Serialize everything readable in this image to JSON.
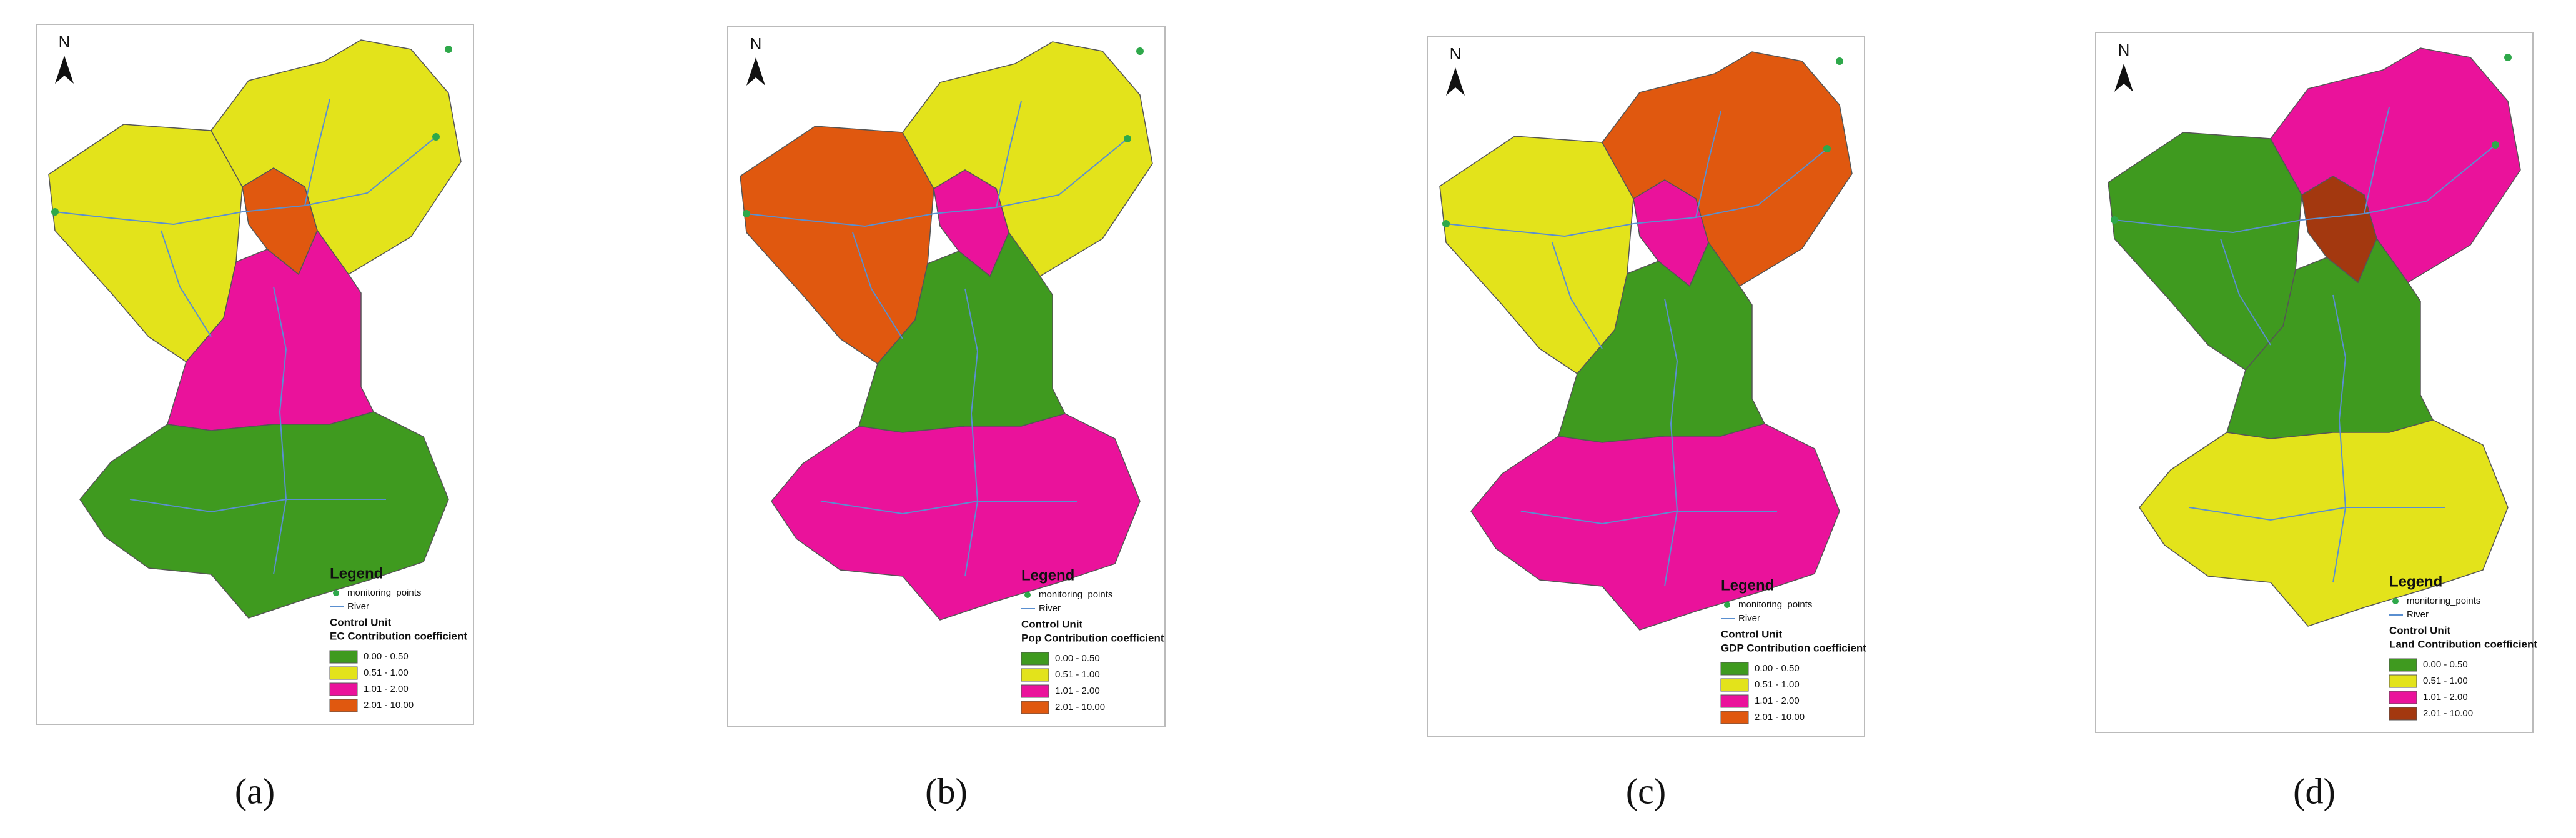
{
  "panels": [
    {
      "label": "(a)",
      "north": "N",
      "legend": {
        "title": "Legend",
        "points": "monitoring_points",
        "river": "River",
        "unit": "Control Unit",
        "subtitle": "EC Contribution coefficient",
        "classes": [
          {
            "label": "0.00 - 0.50",
            "color": "#3f9a1f"
          },
          {
            "label": "0.51 - 1.00",
            "color": "#e3e31b"
          },
          {
            "label": "1.01 - 2.00",
            "color": "#ea129b"
          },
          {
            "label": "2.01 - 10.00",
            "color": "#e0580f"
          }
        ]
      }
    },
    {
      "label": "(b)",
      "north": "N",
      "legend": {
        "title": "Legend",
        "points": "monitoring_points",
        "river": "River",
        "unit": "Control Unit",
        "subtitle": "Pop Contribution coefficient",
        "classes": [
          {
            "label": "0.00 - 0.50",
            "color": "#3f9a1f"
          },
          {
            "label": "0.51 - 1.00",
            "color": "#e3e31b"
          },
          {
            "label": "1.01 - 2.00",
            "color": "#ea129b"
          },
          {
            "label": "2.01 - 10.00",
            "color": "#e0580f"
          }
        ]
      }
    },
    {
      "label": "(c)",
      "north": "N",
      "legend": {
        "title": "Legend",
        "points": "monitoring_points",
        "river": "River",
        "unit": "Control Unit",
        "subtitle": "GDP Contribution coefficient",
        "classes": [
          {
            "label": "0.00 - 0.50",
            "color": "#3f9a1f"
          },
          {
            "label": "0.51 - 1.00",
            "color": "#e3e31b"
          },
          {
            "label": "1.01 - 2.00",
            "color": "#ea129b"
          },
          {
            "label": "2.01 - 10.00",
            "color": "#e0580f"
          }
        ]
      }
    },
    {
      "label": "(d)",
      "north": "N",
      "legend": {
        "title": "Legend",
        "points": "monitoring_points",
        "river": "River",
        "unit": "Control Unit",
        "subtitle": "Land Contribution coefficient",
        "classes": [
          {
            "label": "0.00 - 0.50",
            "color": "#3f9a1f"
          },
          {
            "label": "0.51 - 1.00",
            "color": "#e3e31b"
          },
          {
            "label": "1.01 - 2.00",
            "color": "#ea129b"
          },
          {
            "label": "2.01 - 10.00",
            "color": "#a3380f"
          }
        ]
      }
    }
  ]
}
